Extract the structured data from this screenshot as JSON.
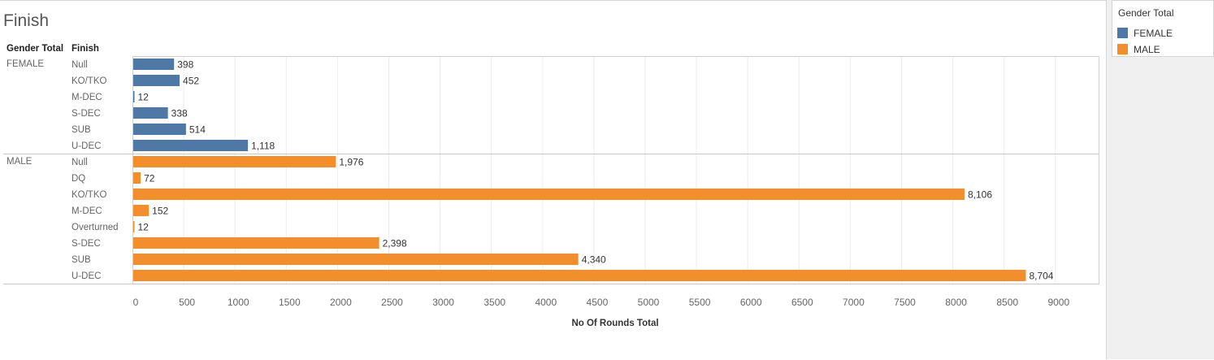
{
  "page": {
    "title": "Finish",
    "row_header_gender": "Gender Total",
    "row_header_finish": "Finish"
  },
  "legend": {
    "title": "Gender Total",
    "items": [
      {
        "label": "FEMALE",
        "color": "#4e79a7"
      },
      {
        "label": "MALE",
        "color": "#f28e2b"
      }
    ]
  },
  "chart_data": {
    "type": "bar",
    "orientation": "horizontal",
    "xlabel": "No Of Rounds Total",
    "xlim": [
      0,
      9000
    ],
    "xticks": [
      0,
      500,
      1000,
      1500,
      2000,
      2500,
      3000,
      3500,
      4000,
      4500,
      5000,
      5500,
      6000,
      6500,
      7000,
      7500,
      8000,
      8500,
      9000
    ],
    "grid": true,
    "groups": [
      {
        "name": "FEMALE",
        "color": "#4e79a7",
        "categories": [
          "Null",
          "KO/TKO",
          "M-DEC",
          "S-DEC",
          "SUB",
          "U-DEC"
        ],
        "values": [
          398,
          452,
          12,
          338,
          514,
          1118
        ],
        "labels": [
          "398",
          "452",
          "12",
          "338",
          "514",
          "1,118"
        ]
      },
      {
        "name": "MALE",
        "color": "#f28e2b",
        "categories": [
          "Null",
          "DQ",
          "KO/TKO",
          "M-DEC",
          "Overturned",
          "S-DEC",
          "SUB",
          "U-DEC"
        ],
        "values": [
          1976,
          72,
          8106,
          152,
          12,
          2398,
          4340,
          8704
        ],
        "labels": [
          "1,976",
          "72",
          "8,106",
          "152",
          "12",
          "2,398",
          "4,340",
          "8,704"
        ]
      }
    ]
  }
}
